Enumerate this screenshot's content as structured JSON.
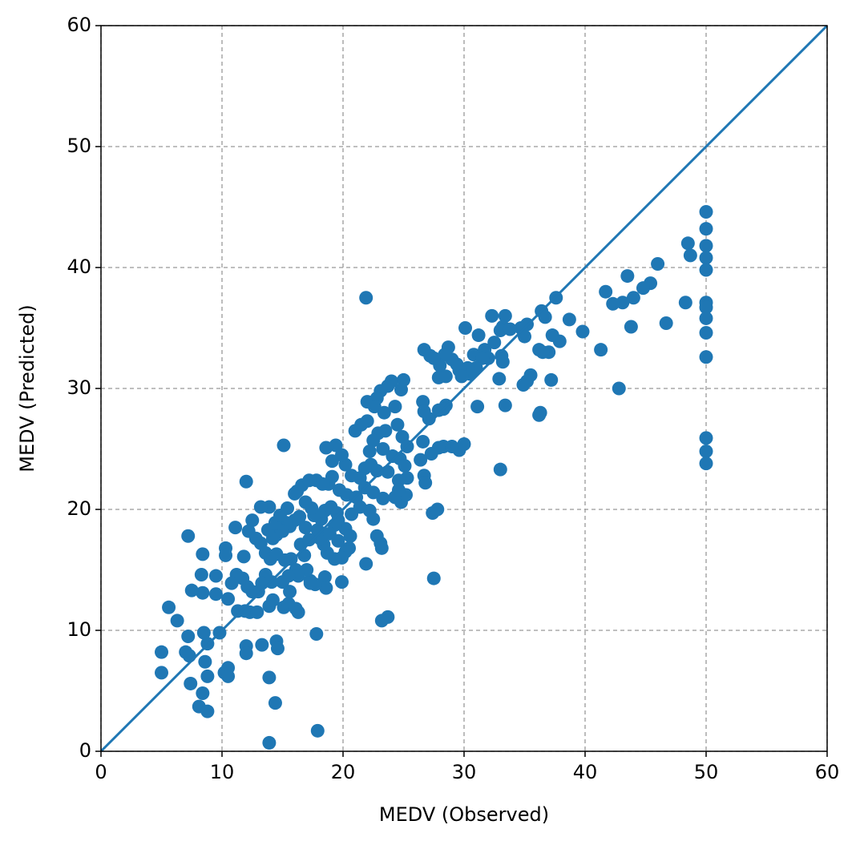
{
  "chart_data": {
    "type": "scatter",
    "xlabel": "MEDV (Observed)",
    "ylabel": "MEDV (Predicted)",
    "xlim": [
      0,
      60
    ],
    "ylim": [
      0,
      60
    ],
    "xticks": [
      0,
      10,
      20,
      30,
      40,
      50,
      60
    ],
    "yticks": [
      0,
      10,
      20,
      30,
      40,
      50,
      60
    ],
    "grid": true,
    "color": "#1f77b4",
    "x": [
      50,
      50,
      50,
      50,
      50,
      50,
      50,
      50,
      50,
      50,
      50,
      50,
      50,
      48.5,
      48.7,
      48.3,
      46,
      45.4,
      44.8,
      44,
      43.5,
      43.1,
      42.3,
      41.7,
      43.8,
      46.7,
      41.3,
      42.8,
      39.8,
      38.7,
      37.9,
      37.6,
      37.3,
      37,
      36.4,
      36.7,
      36.2,
      36.5,
      36.3,
      36.2,
      37.2,
      35.5,
      35.2,
      34.9,
      35,
      35.2,
      34.7,
      33.4,
      32.3,
      33.2,
      33,
      33.8,
      33.1,
      33.2,
      32.9,
      33.4,
      33,
      31.7,
      32.5,
      32,
      31.2,
      30.8,
      31.5,
      31,
      30.1,
      30.5,
      30.3,
      29.6,
      29.4,
      28.7,
      29,
      28.4,
      28,
      27.5,
      27.2,
      26.7,
      27.9,
      28.5,
      29.8,
      31.1,
      30,
      29.6,
      29,
      28.3,
      27.9,
      27.3,
      28.5,
      28.3,
      27.9,
      27.1,
      26.6,
      26.7,
      26.6,
      26.4,
      26.7,
      26.8,
      27.4,
      27.8,
      27.5,
      23.7,
      23.2,
      21.9,
      25,
      24.8,
      24,
      23.7,
      23.1,
      22.8,
      22,
      22.6,
      23.4,
      24.3,
      24.5,
      24.9,
      23.5,
      22.9,
      22.5,
      22,
      21.5,
      21,
      22.2,
      23.3,
      24.1,
      24.7,
      25.3,
      25.1,
      25.3,
      24.6,
      23.7,
      22.8,
      22.3,
      21.8,
      21.4,
      20.7,
      20.2,
      19.9,
      19.1,
      19.4,
      18.6,
      19.1,
      18.8,
      19.7,
      20.3,
      21.1,
      21.8,
      22.5,
      23.3,
      24.3,
      24.8,
      25.2,
      24.6,
      22.5,
      22.8,
      23.1,
      23.2,
      21.9,
      22.2,
      21.4,
      20.7,
      20.2,
      20.6,
      20.5,
      20.2,
      19.9,
      19.3,
      18.7,
      18.4,
      18.1,
      17.9,
      18.2,
      18.5,
      19,
      19.5,
      19.6,
      19.3,
      18.9,
      19.6,
      19.9,
      18.5,
      18.6,
      17.7,
      17.3,
      17,
      16.8,
      16.5,
      17.2,
      16.9,
      17.6,
      17.4,
      16.9,
      16.4,
      16,
      15.6,
      15.3,
      15,
      14.5,
      14.2,
      13.8,
      14.4,
      14.8,
      15.4,
      16.2,
      16.6,
      17.2,
      17.8,
      18.3,
      16,
      15.1,
      13.9,
      13.2,
      12,
      12.5,
      12.2,
      12.8,
      13.2,
      13.6,
      14,
      14.5,
      15.2,
      15.7,
      16.1,
      16.3,
      15.5,
      15,
      14.1,
      13.6,
      13.3,
      13,
      12.5,
      12.1,
      11.7,
      11.2,
      11.8,
      10.3,
      10.3,
      8.4,
      7.2,
      8.3,
      9.5,
      10.8,
      10.5,
      9.5,
      8.4,
      7.5,
      11.1,
      11.3,
      11.9,
      12.3,
      12.9,
      13.9,
      14.2,
      15.1,
      15.5,
      15.6,
      16.1,
      16.3,
      17.3,
      17.8,
      13.3,
      12,
      12,
      14.5,
      14.6,
      13.9,
      14.4,
      13.9,
      17.9,
      10.2,
      10.5,
      10.5,
      9.8,
      8.8,
      8.5,
      7.2,
      7,
      7.3,
      5,
      5,
      5.6,
      6.3,
      7.4,
      8.1,
      8.8,
      8.4,
      8.8,
      8.6
    ],
    "y": [
      44.6,
      43.2,
      41.8,
      40.8,
      39.8,
      37.1,
      36.7,
      35.8,
      34.6,
      32.6,
      25.9,
      24.8,
      23.8,
      42,
      41,
      37.1,
      40.3,
      38.7,
      38.3,
      37.5,
      39.3,
      37.1,
      37,
      38,
      35.1,
      35.4,
      33.2,
      30,
      34.7,
      35.7,
      33.9,
      37.5,
      34.4,
      33,
      36.4,
      35.9,
      33.2,
      33,
      28,
      27.8,
      30.7,
      31.1,
      30.6,
      30.3,
      34.3,
      35.3,
      35,
      36,
      36,
      35.1,
      34.8,
      34.9,
      32.7,
      32.2,
      30.8,
      28.6,
      23.3,
      33.2,
      33.8,
      32.5,
      34.4,
      32.8,
      32.5,
      31.7,
      35,
      31.2,
      31.7,
      31.5,
      32,
      33.4,
      32.4,
      32.8,
      31.9,
      32.5,
      32.7,
      33.2,
      30.9,
      31,
      31,
      28.5,
      25.4,
      24.9,
      25.2,
      25.2,
      25.1,
      24.6,
      28.6,
      28.3,
      28.2,
      27.5,
      28.9,
      28.1,
      25.6,
      24.1,
      22.8,
      22.2,
      19.7,
      20,
      14.3,
      11.1,
      10.8,
      37.5,
      30.7,
      29.9,
      30.6,
      30.2,
      29.8,
      29.2,
      28.9,
      28.5,
      28,
      28.5,
      27,
      26,
      26.5,
      26.3,
      25.7,
      27.3,
      27,
      26.5,
      24.8,
      25,
      24.4,
      24.2,
      25.2,
      23.6,
      22.6,
      22.4,
      23.1,
      23.2,
      23.7,
      23.4,
      22.6,
      22.8,
      23.7,
      24.5,
      24,
      25.3,
      25.1,
      22.7,
      22.1,
      21.6,
      21.2,
      21,
      21.8,
      21.4,
      20.9,
      21,
      20.6,
      21.2,
      21.6,
      19.2,
      17.8,
      17.2,
      16.8,
      15.5,
      19.9,
      20.2,
      19.6,
      18.4,
      17.8,
      16.8,
      16.5,
      16,
      15.9,
      16.4,
      17.1,
      17.6,
      18.3,
      19.2,
      19.9,
      20.2,
      19.7,
      19.1,
      18.7,
      18,
      17.4,
      14,
      14.4,
      13.5,
      13.8,
      14.1,
      15,
      16.2,
      17.1,
      17.5,
      18.5,
      19.5,
      20.1,
      20.6,
      19.4,
      19.1,
      18.6,
      18.9,
      18.2,
      17.9,
      17.6,
      18.3,
      18.9,
      19.5,
      20.1,
      21.5,
      22,
      22.4,
      22.4,
      22.1,
      21.3,
      25.3,
      20.2,
      20.2,
      22.3,
      19.1,
      18.2,
      17.6,
      17.2,
      16.4,
      15.9,
      16.3,
      15.8,
      15.9,
      15,
      14.5,
      14.5,
      14,
      14,
      14.6,
      13.9,
      13.2,
      13.2,
      13.6,
      14.3,
      14.6,
      16.1,
      16.8,
      16.2,
      16.3,
      17.8,
      14.6,
      14.5,
      13.9,
      12.6,
      13,
      13.1,
      13.3,
      18.5,
      11.6,
      11.6,
      11.5,
      11.5,
      12,
      12.5,
      11.9,
      12.2,
      13.2,
      11.8,
      11.5,
      13.9,
      9.7,
      8.8,
      8.7,
      8.1,
      9.1,
      8.5,
      6.1,
      4,
      0.7,
      1.7,
      6.5,
      6.9,
      6.2,
      9.8,
      8.9,
      9.8,
      9.5,
      8.2,
      7.9,
      8.2,
      6.5,
      11.9,
      10.8,
      5.6,
      3.7,
      3.3,
      4.8,
      6.2,
      7.4
    ],
    "reference_line": {
      "x": [
        0,
        60
      ],
      "y": [
        0,
        60
      ],
      "color": "#1f77b4"
    }
  }
}
